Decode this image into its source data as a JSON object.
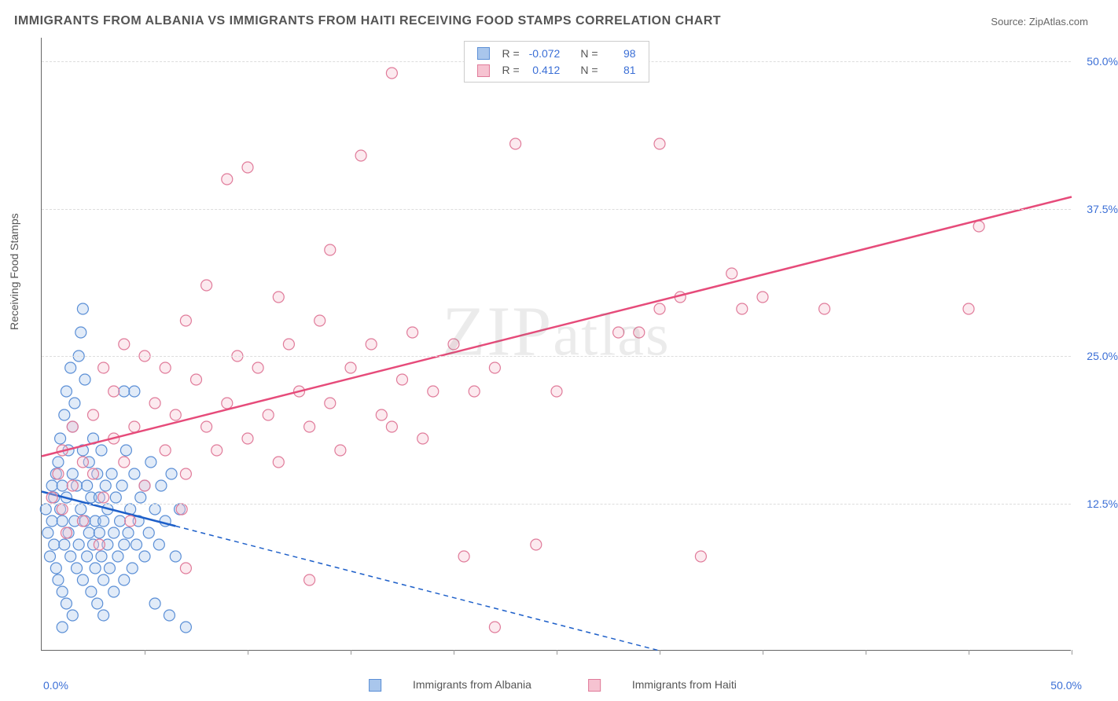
{
  "title": "IMMIGRANTS FROM ALBANIA VS IMMIGRANTS FROM HAITI RECEIVING FOOD STAMPS CORRELATION CHART",
  "source_label": "Source:",
  "source_value": "ZipAtlas.com",
  "watermark": "ZIPatlas",
  "y_axis_label": "Receiving Food Stamps",
  "chart": {
    "type": "scatter",
    "xlim": [
      0,
      50
    ],
    "ylim": [
      0,
      52
    ],
    "x_origin_label": "0.0%",
    "x_max_label": "50.0%",
    "y_ticks": [
      12.5,
      25.0,
      37.5,
      50.0
    ],
    "y_tick_labels": [
      "12.5%",
      "25.0%",
      "37.5%",
      "50.0%"
    ],
    "x_minor_ticks": [
      5,
      10,
      15,
      20,
      25,
      30,
      35,
      40,
      45,
      50
    ],
    "background_color": "#ffffff",
    "grid_color": "#dddddd",
    "axis_color": "#666666",
    "tick_label_color": "#3b6fd6",
    "marker_radius": 7,
    "marker_stroke_width": 1.2,
    "marker_fill_opacity": 0.35,
    "series": {
      "albania": {
        "label": "Immigrants from Albania",
        "color": "#5b8fd6",
        "fill": "#a9c6ec",
        "R": -0.072,
        "N": 98,
        "regression": {
          "x1": 0,
          "y1": 13.5,
          "x2": 30,
          "y2": 0,
          "solid_until_x": 6.5,
          "line_color": "#1d5fc9",
          "line_width": 2.5,
          "dash": "6 5"
        },
        "points": [
          [
            0.2,
            12
          ],
          [
            0.3,
            10
          ],
          [
            0.4,
            8
          ],
          [
            0.5,
            14
          ],
          [
            0.5,
            11
          ],
          [
            0.6,
            9
          ],
          [
            0.6,
            13
          ],
          [
            0.7,
            15
          ],
          [
            0.7,
            7
          ],
          [
            0.8,
            16
          ],
          [
            0.8,
            6
          ],
          [
            0.9,
            18
          ],
          [
            0.9,
            12
          ],
          [
            1.0,
            11
          ],
          [
            1.0,
            14
          ],
          [
            1.0,
            5
          ],
          [
            1.1,
            20
          ],
          [
            1.1,
            9
          ],
          [
            1.2,
            13
          ],
          [
            1.2,
            22
          ],
          [
            1.2,
            4
          ],
          [
            1.3,
            17
          ],
          [
            1.3,
            10
          ],
          [
            1.4,
            24
          ],
          [
            1.4,
            8
          ],
          [
            1.5,
            15
          ],
          [
            1.5,
            19
          ],
          [
            1.5,
            3
          ],
          [
            1.6,
            11
          ],
          [
            1.6,
            21
          ],
          [
            1.7,
            7
          ],
          [
            1.7,
            14
          ],
          [
            1.8,
            25
          ],
          [
            1.8,
            9
          ],
          [
            1.9,
            12
          ],
          [
            1.9,
            27
          ],
          [
            2.0,
            17
          ],
          [
            2.0,
            29
          ],
          [
            2.0,
            6
          ],
          [
            2.1,
            11
          ],
          [
            2.1,
            23
          ],
          [
            2.2,
            8
          ],
          [
            2.2,
            14
          ],
          [
            2.3,
            10
          ],
          [
            2.3,
            16
          ],
          [
            2.4,
            5
          ],
          [
            2.4,
            13
          ],
          [
            2.5,
            9
          ],
          [
            2.5,
            18
          ],
          [
            2.6,
            7
          ],
          [
            2.6,
            11
          ],
          [
            2.7,
            15
          ],
          [
            2.7,
            4
          ],
          [
            2.8,
            10
          ],
          [
            2.8,
            13
          ],
          [
            2.9,
            8
          ],
          [
            2.9,
            17
          ],
          [
            3.0,
            6
          ],
          [
            3.0,
            11
          ],
          [
            3.1,
            14
          ],
          [
            3.2,
            9
          ],
          [
            3.2,
            12
          ],
          [
            3.3,
            7
          ],
          [
            3.4,
            15
          ],
          [
            3.5,
            10
          ],
          [
            3.5,
            5
          ],
          [
            3.6,
            13
          ],
          [
            3.7,
            8
          ],
          [
            3.8,
            11
          ],
          [
            3.9,
            14
          ],
          [
            4.0,
            9
          ],
          [
            4.0,
            6
          ],
          [
            4.1,
            17
          ],
          [
            4.2,
            10
          ],
          [
            4.3,
            12
          ],
          [
            4.4,
            7
          ],
          [
            4.5,
            15
          ],
          [
            4.6,
            9
          ],
          [
            4.7,
            11
          ],
          [
            4.8,
            13
          ],
          [
            5.0,
            8
          ],
          [
            5.0,
            14
          ],
          [
            5.2,
            10
          ],
          [
            5.3,
            16
          ],
          [
            5.5,
            12
          ],
          [
            5.5,
            4
          ],
          [
            5.7,
            9
          ],
          [
            5.8,
            14
          ],
          [
            6.0,
            11
          ],
          [
            6.2,
            3
          ],
          [
            6.3,
            15
          ],
          [
            6.5,
            8
          ],
          [
            6.7,
            12
          ],
          [
            7.0,
            2
          ],
          [
            4.0,
            22
          ],
          [
            4.5,
            22
          ],
          [
            1.0,
            2
          ],
          [
            3.0,
            3
          ]
        ]
      },
      "haiti": {
        "label": "Immigrants from Haiti",
        "color": "#e07b9a",
        "fill": "#f6c3d1",
        "R": 0.412,
        "N": 81,
        "regression": {
          "x1": 0,
          "y1": 16.5,
          "x2": 50,
          "y2": 38.5,
          "line_color": "#e64b7a",
          "line_width": 2.5
        },
        "points": [
          [
            0.5,
            13
          ],
          [
            0.8,
            15
          ],
          [
            1.0,
            17
          ],
          [
            1.0,
            12
          ],
          [
            1.5,
            19
          ],
          [
            1.5,
            14
          ],
          [
            2.0,
            16
          ],
          [
            2.0,
            11
          ],
          [
            2.5,
            20
          ],
          [
            2.5,
            15
          ],
          [
            3.0,
            24
          ],
          [
            3.0,
            13
          ],
          [
            3.5,
            22
          ],
          [
            3.5,
            18
          ],
          [
            4.0,
            16
          ],
          [
            4.0,
            26
          ],
          [
            4.5,
            19
          ],
          [
            5.0,
            25
          ],
          [
            5.0,
            14
          ],
          [
            5.5,
            21
          ],
          [
            6.0,
            24
          ],
          [
            6.0,
            17
          ],
          [
            6.5,
            20
          ],
          [
            7.0,
            28
          ],
          [
            7.0,
            15
          ],
          [
            7.5,
            23
          ],
          [
            8.0,
            19
          ],
          [
            8.0,
            31
          ],
          [
            8.5,
            17
          ],
          [
            9.0,
            40
          ],
          [
            9.0,
            21
          ],
          [
            9.5,
            25
          ],
          [
            10.0,
            41
          ],
          [
            10.0,
            18
          ],
          [
            10.5,
            24
          ],
          [
            11.0,
            20
          ],
          [
            11.5,
            30
          ],
          [
            11.5,
            16
          ],
          [
            12.0,
            26
          ],
          [
            12.5,
            22
          ],
          [
            13.0,
            6
          ],
          [
            13.0,
            19
          ],
          [
            13.5,
            28
          ],
          [
            14.0,
            34
          ],
          [
            14.0,
            21
          ],
          [
            14.5,
            17
          ],
          [
            15.0,
            24
          ],
          [
            15.5,
            42
          ],
          [
            16.0,
            26
          ],
          [
            16.5,
            20
          ],
          [
            17.0,
            49
          ],
          [
            17.0,
            19
          ],
          [
            17.5,
            23
          ],
          [
            18.0,
            27
          ],
          [
            18.5,
            18
          ],
          [
            19.0,
            22
          ],
          [
            20.0,
            26
          ],
          [
            20.5,
            8
          ],
          [
            21.0,
            22
          ],
          [
            22.0,
            24
          ],
          [
            22.0,
            2
          ],
          [
            23.0,
            43
          ],
          [
            24.0,
            9
          ],
          [
            25.0,
            22
          ],
          [
            28.0,
            27
          ],
          [
            29.0,
            27
          ],
          [
            30.0,
            43
          ],
          [
            30.0,
            29
          ],
          [
            31.0,
            30
          ],
          [
            32.0,
            8
          ],
          [
            33.5,
            32
          ],
          [
            34.0,
            29
          ],
          [
            35.0,
            30
          ],
          [
            38.0,
            29
          ],
          [
            45.0,
            29
          ],
          [
            45.5,
            36
          ],
          [
            1.2,
            10
          ],
          [
            2.8,
            9
          ],
          [
            4.3,
            11
          ],
          [
            6.8,
            12
          ],
          [
            7.0,
            7
          ]
        ]
      }
    }
  },
  "legend_bottom": {
    "items": [
      {
        "key": "albania"
      },
      {
        "key": "haiti"
      }
    ]
  },
  "legend_top": {
    "rows": [
      {
        "key": "albania",
        "R_label": "R =",
        "N_label": "N ="
      },
      {
        "key": "haiti",
        "R_label": "R =",
        "N_label": "N ="
      }
    ]
  }
}
